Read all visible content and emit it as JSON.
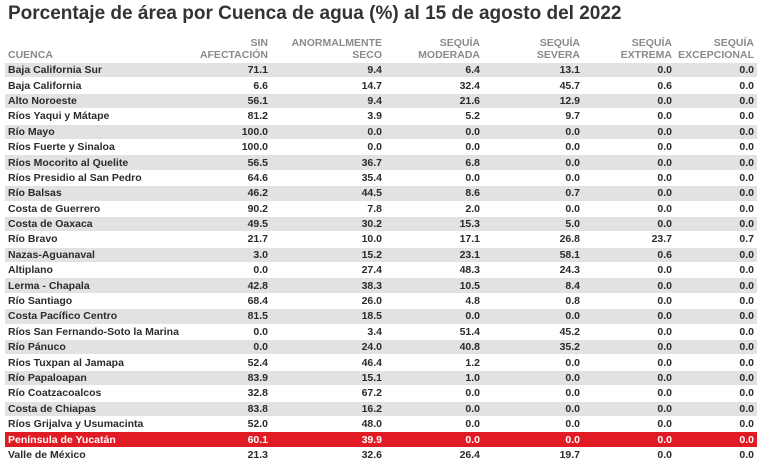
{
  "title": "Porcentaje de área por Cuenca de agua (%) al 15 de agosto del 2022",
  "colors": {
    "row_band": "#e2e2e2",
    "highlight": "#e01b24"
  },
  "headers": [
    [
      "",
      "CUENCA"
    ],
    [
      "SIN",
      "AFECTACIÓN"
    ],
    [
      "ANORMALMENTE",
      "SECO"
    ],
    [
      "SEQUÍA",
      "MODERADA"
    ],
    [
      "SEQUÍA",
      "SEVERA"
    ],
    [
      "SEQUÍA",
      "EXTREMA"
    ],
    [
      "SEQUÍA",
      "EXCEPCIONAL"
    ]
  ],
  "highlight_row": "Península de Yucatán",
  "rows": [
    [
      "Baja California Sur",
      "71.1",
      "9.4",
      "6.4",
      "13.1",
      "0.0",
      "0.0"
    ],
    [
      "Baja California",
      "6.6",
      "14.7",
      "32.4",
      "45.7",
      "0.6",
      "0.0"
    ],
    [
      "Alto Noroeste",
      "56.1",
      "9.4",
      "21.6",
      "12.9",
      "0.0",
      "0.0"
    ],
    [
      "Ríos Yaqui y Mátape",
      "81.2",
      "3.9",
      "5.2",
      "9.7",
      "0.0",
      "0.0"
    ],
    [
      "Río Mayo",
      "100.0",
      "0.0",
      "0.0",
      "0.0",
      "0.0",
      "0.0"
    ],
    [
      "Ríos Fuerte y Sinaloa",
      "100.0",
      "0.0",
      "0.0",
      "0.0",
      "0.0",
      "0.0"
    ],
    [
      "Ríos Mocorito al Quelite",
      "56.5",
      "36.7",
      "6.8",
      "0.0",
      "0.0",
      "0.0"
    ],
    [
      "Ríos Presidio al San Pedro",
      "64.6",
      "35.4",
      "0.0",
      "0.0",
      "0.0",
      "0.0"
    ],
    [
      "Río Balsas",
      "46.2",
      "44.5",
      "8.6",
      "0.7",
      "0.0",
      "0.0"
    ],
    [
      "Costa de Guerrero",
      "90.2",
      "7.8",
      "2.0",
      "0.0",
      "0.0",
      "0.0"
    ],
    [
      "Costa de Oaxaca",
      "49.5",
      "30.2",
      "15.3",
      "5.0",
      "0.0",
      "0.0"
    ],
    [
      "Río Bravo",
      "21.7",
      "10.0",
      "17.1",
      "26.8",
      "23.7",
      "0.7"
    ],
    [
      "Nazas-Aguanaval",
      "3.0",
      "15.2",
      "23.1",
      "58.1",
      "0.6",
      "0.0"
    ],
    [
      "Altiplano",
      "0.0",
      "27.4",
      "48.3",
      "24.3",
      "0.0",
      "0.0"
    ],
    [
      "Lerma - Chapala",
      "42.8",
      "38.3",
      "10.5",
      "8.4",
      "0.0",
      "0.0"
    ],
    [
      "Río Santiago",
      "68.4",
      "26.0",
      "4.8",
      "0.8",
      "0.0",
      "0.0"
    ],
    [
      "Costa Pacífico Centro",
      "81.5",
      "18.5",
      "0.0",
      "0.0",
      "0.0",
      "0.0"
    ],
    [
      "Ríos San Fernando-Soto la Marina",
      "0.0",
      "3.4",
      "51.4",
      "45.2",
      "0.0",
      "0.0"
    ],
    [
      "Río Pánuco",
      "0.0",
      "24.0",
      "40.8",
      "35.2",
      "0.0",
      "0.0"
    ],
    [
      "Ríos Tuxpan al Jamapa",
      "52.4",
      "46.4",
      "1.2",
      "0.0",
      "0.0",
      "0.0"
    ],
    [
      "Río Papaloapan",
      "83.9",
      "15.1",
      "1.0",
      "0.0",
      "0.0",
      "0.0"
    ],
    [
      "Río Coatzacoalcos",
      "32.8",
      "67.2",
      "0.0",
      "0.0",
      "0.0",
      "0.0"
    ],
    [
      "Costa de Chiapas",
      "83.8",
      "16.2",
      "0.0",
      "0.0",
      "0.0",
      "0.0"
    ],
    [
      "Ríos Grijalva y Usumacinta",
      "52.0",
      "48.0",
      "0.0",
      "0.0",
      "0.0",
      "0.0"
    ],
    [
      "Península de Yucatán",
      "60.1",
      "39.9",
      "0.0",
      "0.0",
      "0.0",
      "0.0"
    ],
    [
      "Valle de México",
      "21.3",
      "32.6",
      "26.4",
      "19.7",
      "0.0",
      "0.0"
    ]
  ]
}
